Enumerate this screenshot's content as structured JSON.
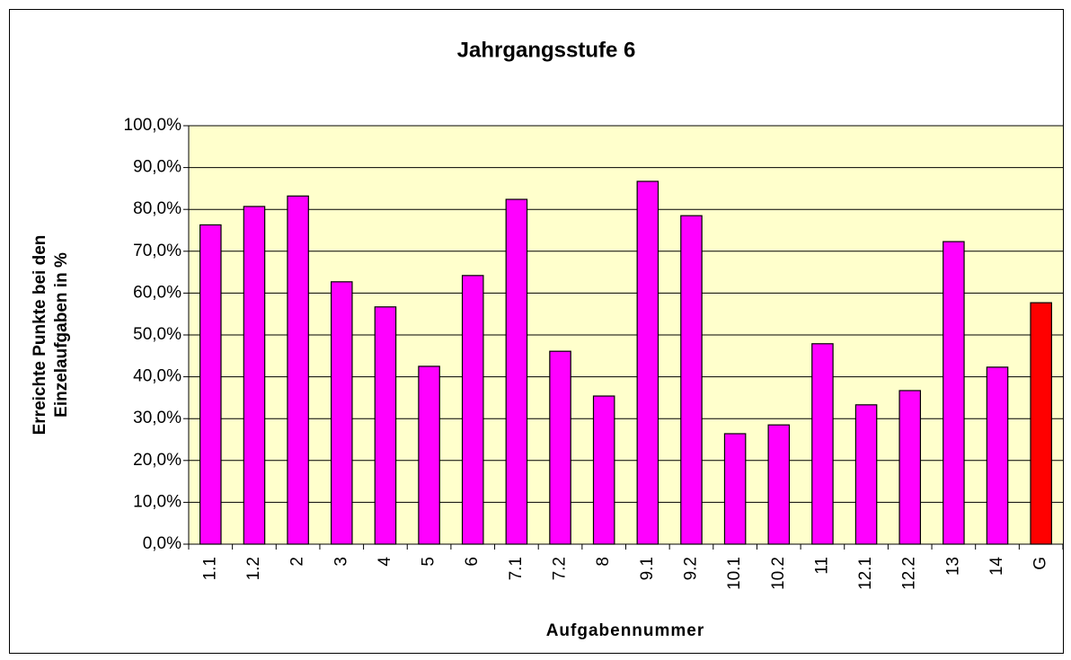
{
  "chart_data": {
    "type": "bar",
    "title": "Jahrgangsstufe 6",
    "xlabel": "Aufgabennummer",
    "ylabel": [
      "Erreichte Punkte bei den",
      "Einzelaufgaben in %"
    ],
    "categories": [
      "1.1",
      "1.2",
      "2",
      "3",
      "4",
      "5",
      "6",
      "7.1",
      "7.2",
      "8",
      "9.1",
      "9.2",
      "10.1",
      "10.2",
      "11",
      "12.1",
      "12.2",
      "13",
      "14",
      "G"
    ],
    "values": [
      76.3,
      80.7,
      83.2,
      62.7,
      56.7,
      42.5,
      64.2,
      82.4,
      46.1,
      35.4,
      86.7,
      78.5,
      26.4,
      28.5,
      47.9,
      33.3,
      36.7,
      72.3,
      42.3,
      57.7
    ],
    "colors": [
      "#ff00ff",
      "#ff00ff",
      "#ff00ff",
      "#ff00ff",
      "#ff00ff",
      "#ff00ff",
      "#ff00ff",
      "#ff00ff",
      "#ff00ff",
      "#ff00ff",
      "#ff00ff",
      "#ff00ff",
      "#ff00ff",
      "#ff00ff",
      "#ff00ff",
      "#ff00ff",
      "#ff00ff",
      "#ff00ff",
      "#ff00ff",
      "#ff0000"
    ],
    "ylim": [
      0,
      100
    ],
    "yticks": [
      {
        "value": 0,
        "label": "0,0%"
      },
      {
        "value": 10,
        "label": "10,0%"
      },
      {
        "value": 20,
        "label": "20,0%"
      },
      {
        "value": 30,
        "label": "30,0%"
      },
      {
        "value": 40,
        "label": "40,0%"
      },
      {
        "value": 50,
        "label": "50,0%"
      },
      {
        "value": 60,
        "label": "60,0%"
      },
      {
        "value": 70,
        "label": "70,0%"
      },
      {
        "value": 80,
        "label": "80,0%"
      },
      {
        "value": 90,
        "label": "90,0%"
      },
      {
        "value": 100,
        "label": "100,0%"
      }
    ],
    "grid": true
  }
}
